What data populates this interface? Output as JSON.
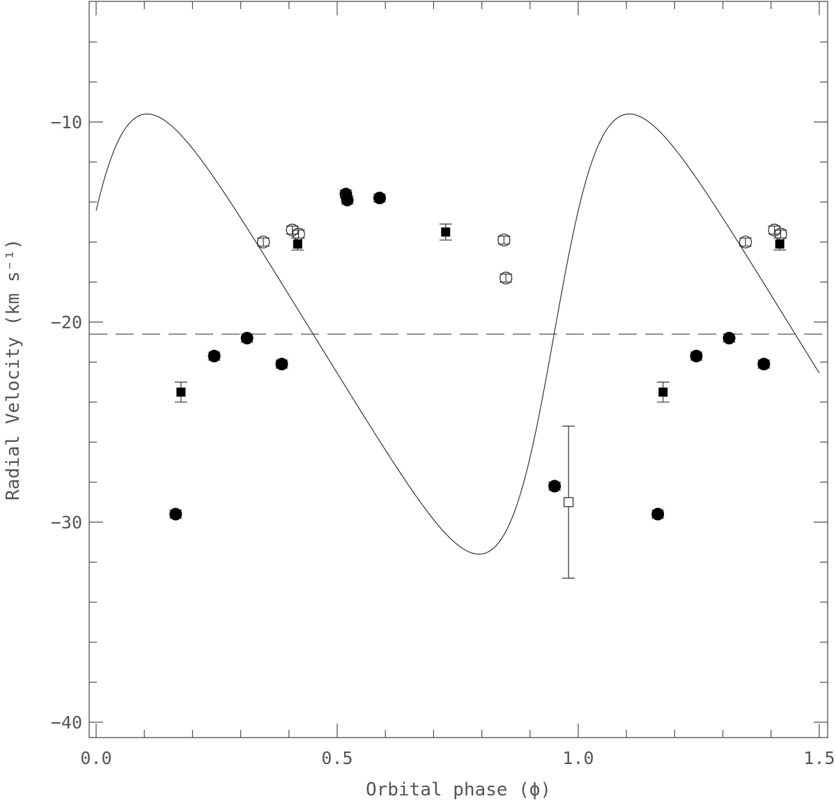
{
  "chart_data": {
    "type": "scatter",
    "title": "",
    "xlabel": "Orbital phase (ϕ)",
    "ylabel": "Radial Velocity (km s⁻¹)",
    "xlim": [
      0.0,
      1.5
    ],
    "ylim": [
      -40.8,
      -5.0
    ],
    "y_inverted": true,
    "x_ticks": [
      "0.0",
      "0.5",
      "1.0",
      "1.5"
    ],
    "y_ticks": [
      "−10",
      "−20",
      "−30",
      "−40"
    ],
    "x_tick_values": [
      0.0,
      0.5,
      1.0,
      1.5
    ],
    "y_tick_values": [
      -10,
      -20,
      -30,
      -40
    ],
    "systemic_velocity": -20.6,
    "series": [
      {
        "marker": "filled-circle",
        "points": [
          {
            "x": 0.165,
            "y": -29.6,
            "err": 0.2
          },
          {
            "x": 0.245,
            "y": -21.7,
            "err": 0.2
          },
          {
            "x": 0.313,
            "y": -20.8,
            "err": 0.2
          },
          {
            "x": 0.385,
            "y": -22.1,
            "err": 0.2
          },
          {
            "x": 0.518,
            "y": -13.6,
            "err": 0.2
          },
          {
            "x": 0.521,
            "y": -13.9,
            "err": 0.2
          },
          {
            "x": 0.588,
            "y": -13.8,
            "err": 0.2
          },
          {
            "x": 0.951,
            "y": -28.2,
            "err": 0.2
          },
          {
            "x": 1.165,
            "y": -29.6,
            "err": 0.2
          },
          {
            "x": 1.245,
            "y": -21.7,
            "err": 0.2
          },
          {
            "x": 1.313,
            "y": -20.8,
            "err": 0.2
          },
          {
            "x": 1.385,
            "y": -22.1,
            "err": 0.2
          }
        ]
      },
      {
        "marker": "open-circle",
        "points": [
          {
            "x": 0.347,
            "y": -16.0,
            "err": 0.2
          },
          {
            "x": 0.407,
            "y": -15.4,
            "err": 0.2
          },
          {
            "x": 0.42,
            "y": -15.6,
            "err": 0.2
          },
          {
            "x": 0.846,
            "y": -15.9,
            "err": 0.2
          },
          {
            "x": 0.85,
            "y": -17.8,
            "err": 0.2
          },
          {
            "x": 1.347,
            "y": -16.0,
            "err": 0.2
          },
          {
            "x": 1.407,
            "y": -15.4,
            "err": 0.2
          },
          {
            "x": 1.42,
            "y": -15.6,
            "err": 0.2
          }
        ]
      },
      {
        "marker": "filled-square",
        "points": [
          {
            "x": 0.176,
            "y": -23.5,
            "err": 0.5
          },
          {
            "x": 0.418,
            "y": -16.1,
            "err": 0.3
          },
          {
            "x": 0.725,
            "y": -15.5,
            "err": 0.4
          },
          {
            "x": 1.176,
            "y": -23.5,
            "err": 0.5
          },
          {
            "x": 1.418,
            "y": -16.1,
            "err": 0.3
          }
        ]
      },
      {
        "marker": "open-square",
        "points": [
          {
            "x": 0.98,
            "y": -29.0,
            "err": 3.8
          }
        ]
      }
    ],
    "fit_curve": {
      "model": "keplerian",
      "period_phase_units": 1.0,
      "K": 11.0,
      "e": 0.3,
      "omega_deg": 270,
      "gamma": -20.6,
      "periastron_phase": 0.95
    }
  }
}
